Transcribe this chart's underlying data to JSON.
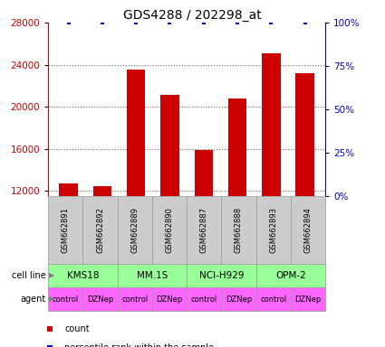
{
  "title": "GDS4288 / 202298_at",
  "samples": [
    "GSM662891",
    "GSM662892",
    "GSM662889",
    "GSM662890",
    "GSM662887",
    "GSM662888",
    "GSM662893",
    "GSM662894"
  ],
  "counts": [
    12700,
    12400,
    23500,
    21100,
    15900,
    20800,
    25100,
    23200
  ],
  "percentile_ranks": [
    100,
    100,
    100,
    100,
    100,
    100,
    100,
    100
  ],
  "ylim_left": [
    11500,
    28000
  ],
  "yticks_left": [
    12000,
    16000,
    20000,
    24000,
    28000
  ],
  "yticks_right": [
    0,
    25,
    50,
    75,
    100
  ],
  "ylim_right": [
    0,
    100
  ],
  "bar_color": "#cc0000",
  "dot_color": "#0000cc",
  "cell_lines": [
    "KMS18",
    "MM.1S",
    "NCI-H929",
    "OPM-2"
  ],
  "cell_line_color_light": "#99ff99",
  "cell_line_color_dark": "#22aa22",
  "cell_line_text_color": "#000000",
  "agents": [
    "control",
    "DZNep",
    "control",
    "DZNep",
    "control",
    "DZNep",
    "control",
    "DZNep"
  ],
  "agent_color": "#ff66ff",
  "sample_box_color": "#cccccc",
  "sample_box_edge": "#999999",
  "grid_color": "#666666",
  "bg_color": "#ffffff",
  "title_fontsize": 10,
  "tick_fontsize": 7.5,
  "sample_fontsize": 6,
  "cell_fontsize": 7.5,
  "agent_fontsize": 6,
  "label_fontsize": 7
}
